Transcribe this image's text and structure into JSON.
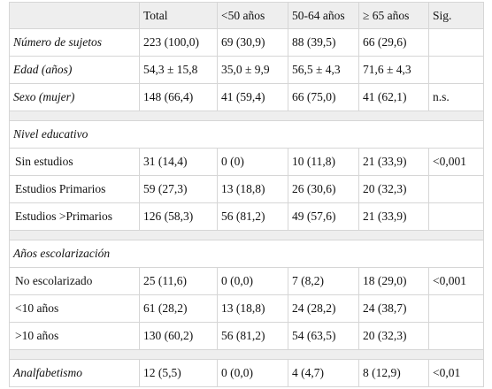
{
  "table": {
    "header": [
      "Total",
      "<50 años",
      "50-64 años",
      "≥ 65 años",
      "Sig."
    ],
    "blocks": [
      {
        "rows": [
          {
            "label": "Número de sujetos",
            "values": [
              "223 (100,0)",
              "69 (30,9)",
              "88 (39,5)",
              "66 (29,6)"
            ]
          },
          {
            "label": "Edad (años)",
            "values": [
              "54,3 ± 15,8",
              "35,0 ± 9,9",
              "56,5 ± 4,3",
              "71,6 ± 4,3"
            ]
          },
          {
            "label": "Sexo (mujer)",
            "values": [
              "148 (66,4)",
              "41 (59,4)",
              "66 (75,0)",
              "41 (62,1)"
            ],
            "sig": "n.s."
          }
        ]
      },
      {
        "title": "Nivel educativo",
        "rows": [
          {
            "label": "Sin estudios",
            "values": [
              "31 (14,4)",
              "0 (0)",
              "10 (11,8)",
              "21 (33,9)"
            ],
            "sig": "<0,001"
          },
          {
            "label": "Estudios Primarios",
            "values": [
              "59 (27,3)",
              "13 (18,8)",
              "26 (30,6)",
              "20 (32,3)"
            ]
          },
          {
            "label": "Estudios >Primarios",
            "values": [
              "126 (58,3)",
              "56 (81,2)",
              "49 (57,6)",
              "21 (33,9)"
            ]
          }
        ]
      },
      {
        "title": "Años escolarización",
        "rows": [
          {
            "label": "No escolarizado",
            "values": [
              "25 (11,6)",
              "0 (0,0)",
              "7 (8,2)",
              "18 (29,0)"
            ],
            "sig": "<0,001"
          },
          {
            "label": "<10 años",
            "values": [
              "61 (28,2)",
              "13 (18,8)",
              "24 (28,2)",
              "24 (38,7)"
            ]
          },
          {
            "label": ">10 años",
            "values": [
              "130 (60,2)",
              "56 (81,2)",
              "54 (63,5)",
              "20 (32,3)"
            ]
          }
        ]
      },
      {
        "rows": [
          {
            "label": "Analfabetismo",
            "values": [
              "12 (5,5)",
              "0 (0,0)",
              "4 (4,7)",
              "8 (12,9)"
            ],
            "sig": "<0,01"
          }
        ]
      }
    ]
  }
}
